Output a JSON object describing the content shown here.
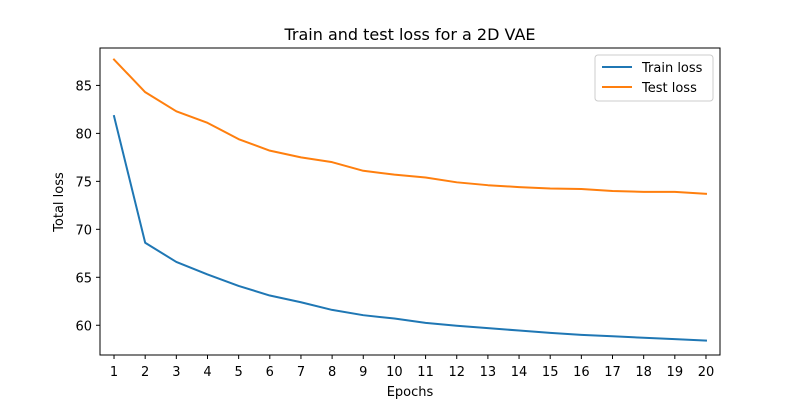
{
  "chart_data": {
    "type": "line",
    "title": "Train and test loss for a 2D VAE",
    "xlabel": "Epochs",
    "ylabel": "Total loss",
    "x": [
      1,
      2,
      3,
      4,
      5,
      6,
      7,
      8,
      9,
      10,
      11,
      12,
      13,
      14,
      15,
      16,
      17,
      18,
      19,
      20
    ],
    "xticks": [
      1,
      2,
      3,
      4,
      5,
      6,
      7,
      8,
      9,
      10,
      11,
      12,
      13,
      14,
      15,
      16,
      17,
      18,
      19,
      20
    ],
    "yticks": [
      60,
      65,
      70,
      75,
      80,
      85
    ],
    "xlim": [
      0.55,
      20.45
    ],
    "ylim": [
      56.9,
      88.9
    ],
    "grid": false,
    "legend_position": "top-right",
    "series": [
      {
        "name": "Train loss",
        "color": "#1f77b4",
        "values": [
          81.8,
          68.6,
          66.6,
          65.3,
          64.1,
          63.1,
          62.4,
          61.6,
          61.05,
          60.7,
          60.25,
          59.95,
          59.7,
          59.45,
          59.2,
          59.0,
          58.85,
          58.7,
          58.55,
          58.4
        ]
      },
      {
        "name": "Test loss",
        "color": "#ff7f0e",
        "values": [
          87.7,
          84.3,
          82.3,
          81.1,
          79.4,
          78.2,
          77.5,
          77.0,
          76.1,
          75.7,
          75.4,
          74.9,
          74.6,
          74.4,
          74.25,
          74.2,
          74.0,
          73.9,
          73.9,
          73.7
        ]
      }
    ]
  }
}
